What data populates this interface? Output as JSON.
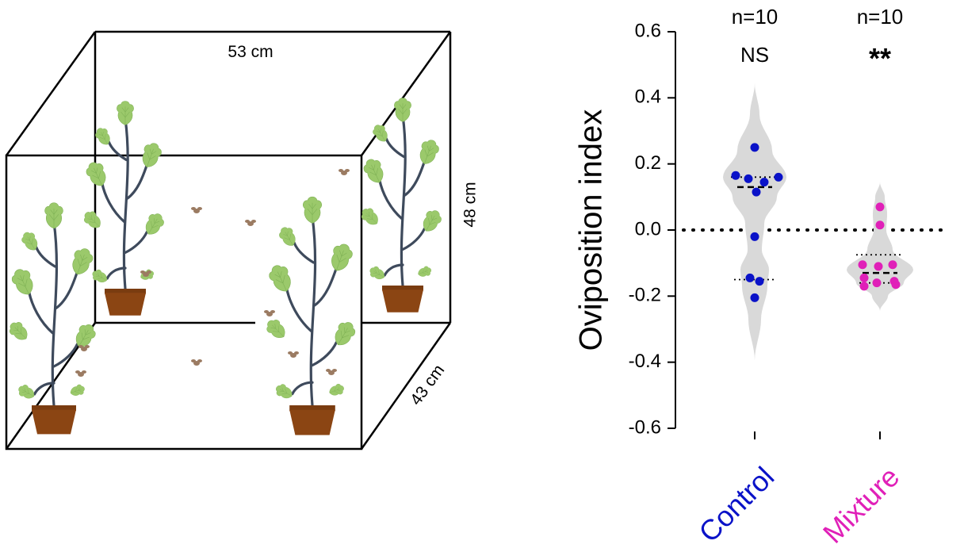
{
  "diagram": {
    "width_label": "53 cm",
    "height_label": "48 cm",
    "depth_label": "43 cm",
    "colors": {
      "leaf": "#9bc96b",
      "leaf_vein": "#7fb155",
      "stem": "#3e4a5c",
      "pot": "#8b4513",
      "pot_rim": "#7a3c10",
      "insect": "#9b7b62",
      "frame": "#000000"
    }
  },
  "chart_data": {
    "type": "violin",
    "ylabel": "Oviposition index",
    "ylim": [
      -0.6,
      0.6
    ],
    "yticks": [
      0.6,
      0.4,
      0.2,
      0.0,
      -0.2,
      -0.4,
      -0.6
    ],
    "ytick_labels": [
      "0.6",
      "0.4",
      "0.2",
      "0.0",
      "-0.2",
      "-0.4",
      "-0.6"
    ],
    "reference_line": 0.0,
    "groups": [
      {
        "name": "Control",
        "color": "#0a12c8",
        "n_label": "n=10",
        "significance": "NS",
        "points": [
          0.25,
          0.165,
          0.155,
          0.16,
          0.145,
          0.115,
          -0.02,
          -0.145,
          -0.155,
          -0.205
        ],
        "median": 0.13,
        "q1": -0.15,
        "q3": 0.16,
        "extent": [
          -0.395,
          0.445
        ]
      },
      {
        "name": "Mixture",
        "color": "#e020b8",
        "n_label": "n=10",
        "significance": "**",
        "points": [
          0.07,
          0.015,
          -0.105,
          -0.11,
          -0.105,
          -0.145,
          -0.155,
          -0.16,
          -0.165,
          -0.17
        ],
        "median": -0.13,
        "q1": -0.16,
        "q3": -0.075,
        "extent": [
          -0.245,
          0.145
        ]
      }
    ]
  }
}
